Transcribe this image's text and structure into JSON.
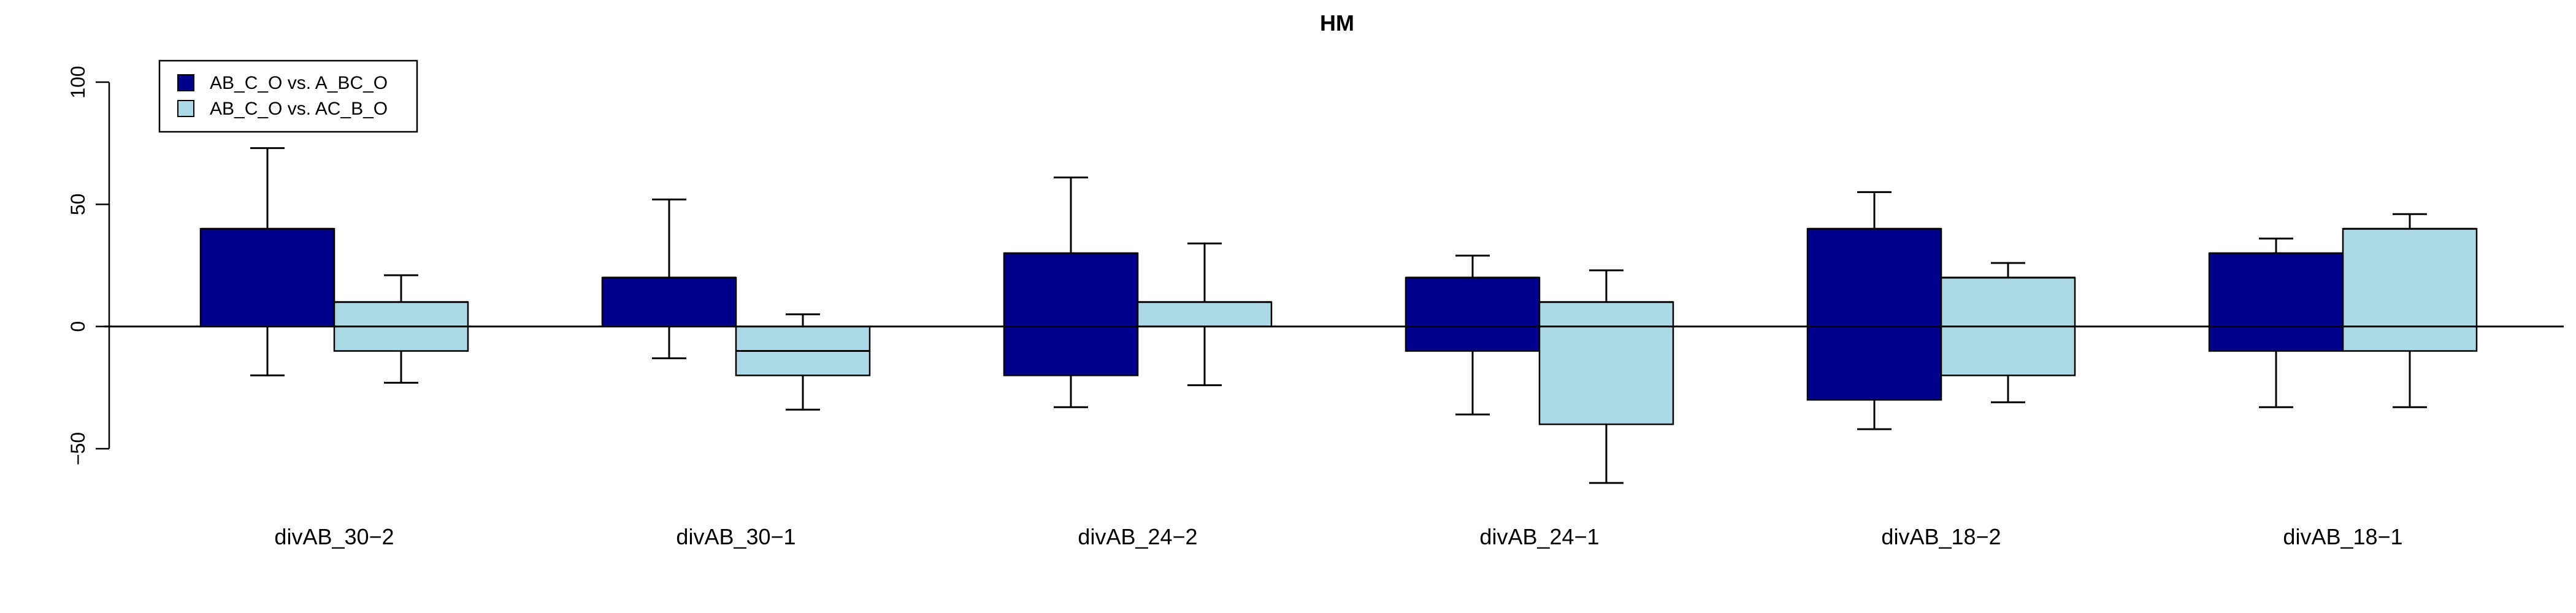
{
  "chart_data": {
    "type": "bar",
    "title": "HM",
    "xlabel": "",
    "ylabel": "",
    "ylim": [
      -50,
      100
    ],
    "yticks": [
      -50,
      0,
      50,
      100
    ],
    "grid": false,
    "legend_position": "top-left",
    "categories": [
      "divAB_30−2",
      "divAB_30−1",
      "divAB_24−2",
      "divAB_24−1",
      "divAB_18−2",
      "divAB_18−1"
    ],
    "series": [
      {
        "name": "AB_C_O vs. A_BC_O",
        "color": "#00008b",
        "q_low": [
          0,
          0,
          -20,
          -10,
          -30,
          -10
        ],
        "q_high": [
          40,
          20,
          30,
          20,
          40,
          30
        ],
        "median": [
          40,
          20,
          30,
          20,
          40,
          30
        ],
        "whisker_low": [
          -20,
          -13,
          -33,
          -36,
          -42,
          -33
        ],
        "whisker_high": [
          73,
          52,
          61,
          29,
          55,
          36
        ]
      },
      {
        "name": "AB_C_O vs. AC_B_O",
        "color": "#add8e6",
        "q_low": [
          -10,
          -20,
          0,
          -40,
          -20,
          -10
        ],
        "q_high": [
          10,
          0,
          10,
          10,
          20,
          40
        ],
        "median": [
          10,
          -10,
          10,
          10,
          20,
          40
        ],
        "whisker_low": [
          -23,
          -34,
          -24,
          -64,
          -31,
          -33
        ],
        "whisker_high": [
          21,
          5,
          34,
          23,
          26,
          46
        ]
      }
    ]
  }
}
